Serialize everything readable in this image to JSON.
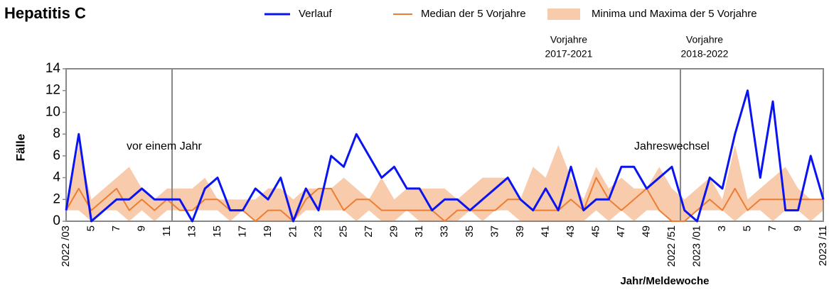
{
  "chart_data": {
    "type": "line",
    "title": "Hepatitis C",
    "ylabel": "Fälle",
    "xlabel": "Jahr/Meldewoche",
    "annotations": [
      {
        "lines": [
          "vor einem Jahr"
        ]
      },
      {
        "lines": [
          "Jahreswechsel"
        ]
      },
      {
        "lines": [
          "Vorjahre",
          "2017-2021"
        ]
      },
      {
        "lines": [
          "Vorjahre",
          "2018-2022"
        ]
      }
    ],
    "categories": [
      "2022 /03",
      null,
      "5",
      null,
      "7",
      null,
      "9",
      null,
      "11",
      null,
      "13",
      null,
      "15",
      null,
      "17",
      null,
      "19",
      null,
      "21",
      null,
      "23",
      null,
      "25",
      null,
      "27",
      null,
      "29",
      null,
      "31",
      null,
      "33",
      null,
      "35",
      null,
      "37",
      null,
      "39",
      null,
      "41",
      null,
      "43",
      null,
      "45",
      null,
      "47",
      null,
      "49",
      null,
      "2022 /51",
      null,
      "2023 /01",
      null,
      "3",
      null,
      "5",
      null,
      "7",
      null,
      "9",
      null,
      "2023 /11"
    ],
    "ylim": [
      0,
      14
    ],
    "yticks": [
      0,
      2,
      4,
      6,
      8,
      10,
      12,
      14
    ],
    "band": {
      "name": "Minima und Maxima der 5 Vorjahre",
      "color": "#f8cbad",
      "lower": [
        1,
        1,
        0,
        1,
        1,
        0,
        1,
        0,
        1,
        1,
        1,
        1,
        1,
        0,
        1,
        0,
        0,
        0,
        0,
        1,
        1,
        1,
        1,
        0,
        1,
        0,
        0,
        1,
        0,
        0,
        0,
        0,
        1,
        0,
        1,
        1,
        0,
        0,
        0,
        0,
        0,
        0,
        1,
        0,
        1,
        0,
        1,
        1,
        0,
        0,
        1,
        1,
        1,
        0,
        1,
        1,
        0,
        1,
        1,
        0,
        1
      ],
      "upper": [
        1,
        7,
        2,
        3,
        4,
        5,
        3,
        2,
        3,
        3,
        3,
        4,
        2,
        2,
        2,
        2,
        3,
        3,
        2,
        3,
        3,
        3,
        4,
        3,
        2,
        4,
        2,
        3,
        3,
        3,
        3,
        2,
        3,
        4,
        4,
        4,
        2,
        5,
        4,
        7,
        4,
        2,
        5,
        3,
        4,
        3,
        3,
        5,
        3,
        2,
        3,
        4,
        2,
        7,
        2,
        3,
        4,
        5,
        3,
        2,
        2
      ]
    },
    "series": [
      {
        "name": "Verlauf",
        "color": "#0a14f0",
        "values": [
          1,
          8,
          0,
          1,
          2,
          2,
          3,
          2,
          2,
          2,
          0,
          3,
          4,
          1,
          1,
          3,
          2,
          4,
          0,
          3,
          1,
          6,
          5,
          8,
          6,
          4,
          5,
          3,
          3,
          1,
          2,
          2,
          1,
          2,
          3,
          4,
          2,
          1,
          3,
          1,
          5,
          1,
          2,
          2,
          5,
          5,
          3,
          4,
          5,
          1,
          0,
          4,
          3,
          8,
          12,
          4,
          11,
          1,
          1,
          6,
          2
        ]
      },
      {
        "name": "Median der 5 Vorjahre",
        "color": "#ed7d31",
        "values": [
          1,
          3,
          1,
          2,
          3,
          1,
          2,
          1,
          2,
          1,
          1,
          2,
          2,
          1,
          1,
          0,
          1,
          1,
          0,
          2,
          3,
          3,
          1,
          2,
          2,
          1,
          1,
          1,
          1,
          1,
          0,
          1,
          1,
          1,
          1,
          2,
          2,
          1,
          1,
          1,
          2,
          1,
          4,
          2,
          1,
          2,
          3,
          1,
          0,
          0,
          1,
          2,
          1,
          3,
          1,
          2,
          2,
          2,
          2,
          2,
          2
        ]
      }
    ]
  }
}
